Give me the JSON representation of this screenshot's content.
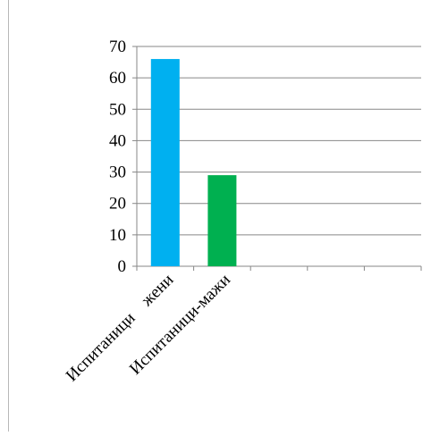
{
  "chart_data": {
    "type": "bar",
    "categories": [
      "Испитаници    жени",
      "Испитаници-мажи",
      "",
      "",
      ""
    ],
    "values": [
      66,
      29,
      null,
      null,
      null
    ],
    "ylim": [
      0,
      70
    ],
    "yticks": [
      0,
      10,
      20,
      30,
      40,
      50,
      60,
      70
    ],
    "grid": true,
    "legend": "none",
    "colors": [
      "#00b0f0",
      "#00b050"
    ],
    "title": "",
    "xlabel": "",
    "ylabel": ""
  }
}
